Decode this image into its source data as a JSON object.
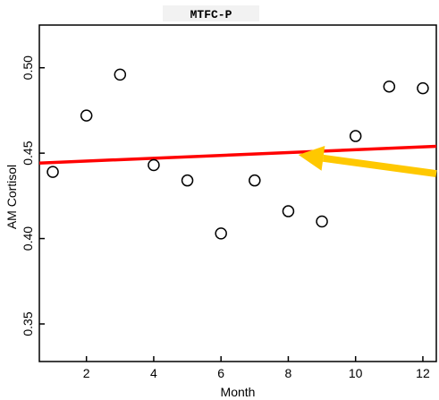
{
  "chart_data": {
    "type": "scatter",
    "title": "MTFC-P",
    "xlabel": "Month",
    "ylabel": "AM Cortisol",
    "xlim": [
      0.6,
      12.4
    ],
    "ylim": [
      0.328,
      0.525
    ],
    "xticks": [
      2,
      4,
      6,
      8,
      10,
      12
    ],
    "yticks": [
      0.35,
      0.4,
      0.45,
      0.5
    ],
    "ytick_labels": [
      "0.35",
      "0.40",
      "0.45",
      "0.50"
    ],
    "grid": false,
    "points": [
      {
        "x": 1,
        "y": 0.439
      },
      {
        "x": 2,
        "y": 0.472
      },
      {
        "x": 3,
        "y": 0.496
      },
      {
        "x": 4,
        "y": 0.443
      },
      {
        "x": 5,
        "y": 0.434
      },
      {
        "x": 6,
        "y": 0.403
      },
      {
        "x": 7,
        "y": 0.434
      },
      {
        "x": 8,
        "y": 0.416
      },
      {
        "x": 9,
        "y": 0.41
      },
      {
        "x": 10,
        "y": 0.46
      },
      {
        "x": 11,
        "y": 0.489
      },
      {
        "x": 12,
        "y": 0.488
      }
    ],
    "trend_line": {
      "x": [
        0.6,
        12.4
      ],
      "y": [
        0.4442,
        0.454
      ],
      "color": "#ff0000"
    },
    "annotation_arrow": {
      "color": "#ffc800",
      "from": [
        12.4,
        0.438
      ],
      "to": [
        8.3,
        0.449
      ]
    }
  }
}
